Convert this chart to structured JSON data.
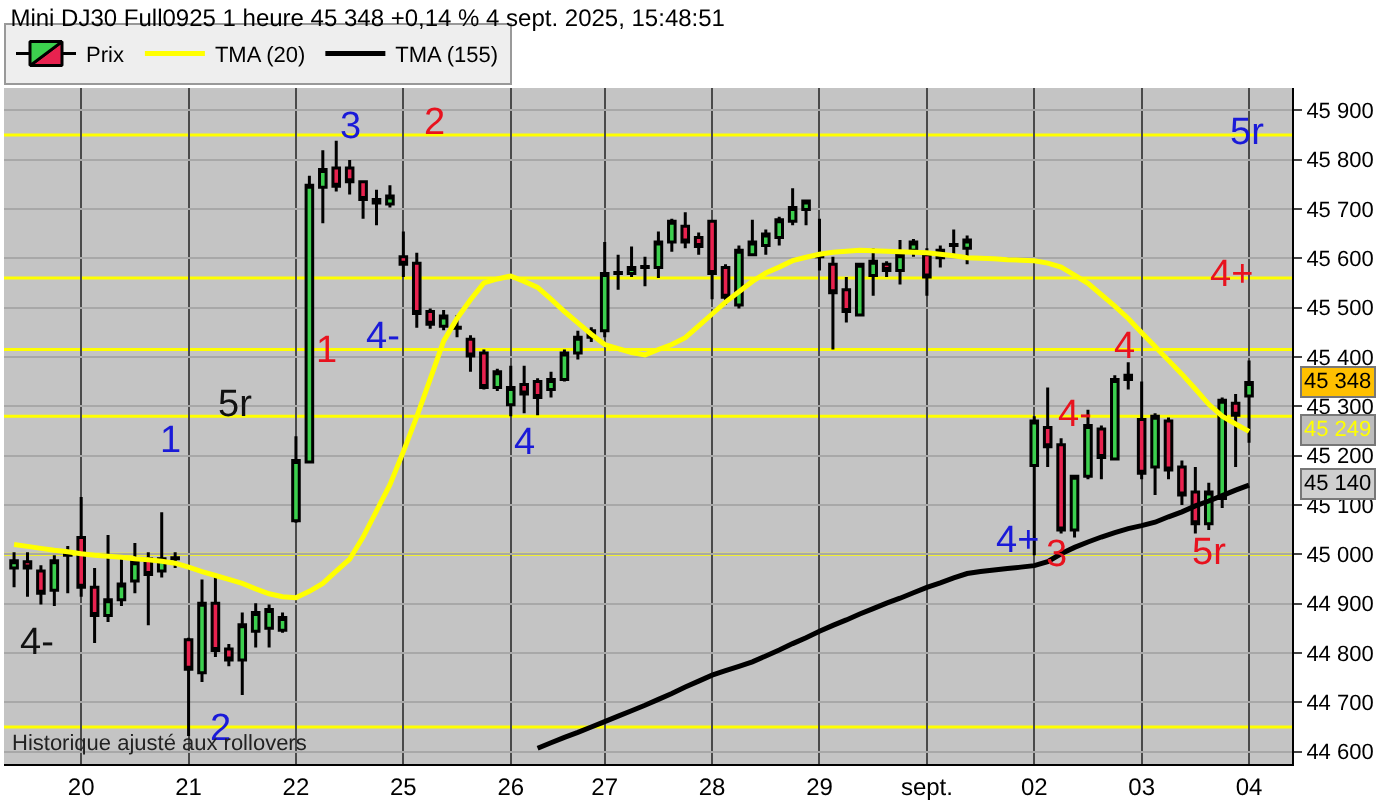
{
  "chart_data": {
    "type": "candlestick",
    "title": "Mini DJ30 Full0925 1 heure 45 348 +0,14 % 4 sept. 2025, 15:48:51",
    "annotations": [
      "4-",
      "1",
      "2",
      "5r",
      "3",
      "2",
      "1",
      "4-",
      "4",
      "4+",
      "3",
      "4-",
      "4",
      "5r",
      "4+",
      "5r",
      "45 348",
      "45 249",
      "45 140",
      "Historique ajusté aux rollovers"
    ],
    "categories": [
      null,
      null,
      null,
      null,
      null,
      "20",
      null,
      null,
      null,
      null,
      null,
      null,
      null,
      "21",
      null,
      null,
      null,
      null,
      null,
      null,
      null,
      "22",
      null,
      null,
      null,
      null,
      null,
      null,
      null,
      "25",
      null,
      null,
      null,
      null,
      null,
      null,
      null,
      "26",
      null,
      null,
      null,
      null,
      null,
      null,
      "27",
      null,
      null,
      null,
      null,
      null,
      null,
      null,
      "28",
      null,
      null,
      null,
      null,
      null,
      null,
      null,
      "29",
      null,
      null,
      null,
      null,
      null,
      null,
      null,
      "sept.",
      null,
      null,
      null,
      null,
      null,
      null,
      null,
      "02",
      null,
      null,
      null,
      null,
      null,
      null,
      null,
      "03",
      null,
      null,
      null,
      null,
      null,
      null,
      null,
      "04"
    ],
    "series": [
      {
        "name": "Prix",
        "ohlc": [
          [
            44972,
            45004,
            44933,
            44987
          ],
          [
            44985,
            45004,
            44914,
            44972
          ],
          [
            44966,
            44978,
            44898,
            44921
          ],
          [
            44927,
            44998,
            44895,
            44987
          ],
          [
            44998,
            45017,
            44921,
            45000
          ],
          [
            45034,
            45116,
            44914,
            44933
          ],
          [
            44933,
            44972,
            44820,
            44876
          ],
          [
            44876,
            45039,
            44863,
            44908
          ],
          [
            44908,
            44991,
            44895,
            44940
          ],
          [
            44946,
            45023,
            44921,
            44985
          ],
          [
            44991,
            45004,
            44856,
            44959
          ],
          [
            44966,
            45085,
            44953,
            44991
          ],
          [
            44991,
            45004,
            44972,
            44993
          ],
          [
            44827,
            44831,
            44632,
            44767
          ],
          [
            44760,
            44949,
            44741,
            44901
          ],
          [
            44901,
            44959,
            44792,
            44805
          ],
          [
            44808,
            44818,
            44773,
            44786
          ],
          [
            44786,
            44882,
            44715,
            44857
          ],
          [
            44844,
            44901,
            44811,
            44882
          ],
          [
            44850,
            44898,
            44811,
            44888
          ],
          [
            44846,
            44882,
            44841,
            44872
          ],
          [
            45068,
            45239,
            45064,
            45190
          ],
          [
            45187,
            45767,
            45185,
            45748
          ],
          [
            45744,
            45819,
            45671,
            45780
          ],
          [
            45783,
            45838,
            45735,
            45746
          ],
          [
            45783,
            45799,
            45729,
            45755
          ],
          [
            45755,
            45757,
            45680,
            45719
          ],
          [
            45719,
            45739,
            45667,
            45712
          ],
          [
            45710,
            45748,
            45703,
            45726
          ],
          [
            45603,
            45654,
            45562,
            45588
          ],
          [
            45590,
            45611,
            45459,
            45488
          ],
          [
            45492,
            45498,
            45457,
            45466
          ],
          [
            45462,
            45495,
            45454,
            45483
          ],
          [
            45460,
            45485,
            45440,
            45458
          ],
          [
            45436,
            45444,
            45370,
            45402
          ],
          [
            45408,
            45415,
            45334,
            45338
          ],
          [
            45338,
            45376,
            45331,
            45370
          ],
          [
            45303,
            45382,
            45280,
            45338
          ],
          [
            45344,
            45382,
            45286,
            45325
          ],
          [
            45350,
            45357,
            45282,
            45318
          ],
          [
            45334,
            45370,
            45318,
            45354
          ],
          [
            45354,
            45415,
            45350,
            45408
          ],
          [
            45408,
            45453,
            45395,
            45440
          ],
          [
            45440,
            45460,
            45430,
            45453
          ],
          [
            45453,
            45633,
            45440,
            45569
          ],
          [
            45569,
            45607,
            45536,
            45571
          ],
          [
            45569,
            45624,
            45562,
            45581
          ],
          [
            45581,
            45603,
            45543,
            45583
          ],
          [
            45581,
            45654,
            45560,
            45633
          ],
          [
            45633,
            45680,
            45613,
            45675
          ],
          [
            45665,
            45693,
            45620,
            45633
          ],
          [
            45642,
            45652,
            45607,
            45624
          ],
          [
            45675,
            45678,
            45517,
            45569
          ],
          [
            45581,
            45588,
            45505,
            45521
          ],
          [
            45505,
            45626,
            45498,
            45616
          ],
          [
            45607,
            45678,
            45607,
            45633
          ],
          [
            45626,
            45658,
            45607,
            45649
          ],
          [
            45642,
            45684,
            45626,
            45678
          ],
          [
            45675,
            45742,
            45667,
            45703
          ],
          [
            45699,
            45719,
            45667,
            45716
          ],
          [
            45607,
            45680,
            45575,
            45603
          ],
          [
            45588,
            45603,
            45415,
            45530
          ],
          [
            45536,
            45562,
            45470,
            45492
          ],
          [
            45485,
            45588,
            45482,
            45588
          ],
          [
            45565,
            45620,
            45524,
            45594
          ],
          [
            45588,
            45594,
            45562,
            45575
          ],
          [
            45575,
            45637,
            45547,
            45607
          ],
          [
            45616,
            45639,
            45603,
            45633
          ],
          [
            45607,
            45620,
            45524,
            45562
          ],
          [
            45601,
            45626,
            45581,
            45616
          ],
          [
            45626,
            45658,
            45607,
            45628
          ],
          [
            45620,
            45646,
            45588,
            45637
          ],
          null,
          null,
          null,
          null,
          [
            45180,
            45280,
            44998,
            45270
          ],
          [
            45257,
            45338,
            45177,
            45218
          ],
          [
            45222,
            45235,
            45042,
            45049
          ],
          [
            45049,
            45158,
            45034,
            45158
          ],
          [
            45158,
            45293,
            45152,
            45261
          ],
          [
            45254,
            45261,
            45152,
            45196
          ],
          [
            45193,
            45363,
            45190,
            45354
          ],
          [
            45354,
            45389,
            45334,
            45363
          ],
          [
            45273,
            45350,
            45152,
            45164
          ],
          [
            45177,
            45286,
            45120,
            45280
          ],
          [
            45270,
            45277,
            45152,
            45171
          ],
          [
            45177,
            45190,
            45100,
            45120
          ],
          [
            45126,
            45177,
            45042,
            45062
          ],
          [
            45062,
            45145,
            45049,
            45126
          ],
          [
            45113,
            45318,
            45094,
            45312
          ],
          [
            45306,
            45325,
            45177,
            45282
          ],
          [
            45321,
            45393,
            45226,
            45348
          ]
        ]
      },
      {
        "name": "TMA (20)",
        "type": "line",
        "color": "#ffff00",
        "values": [
          45020,
          45016,
          45012,
          45008,
          45005,
          45001,
          44998,
          44996,
          44994,
          44991,
          44989,
          44986,
          44982,
          44974,
          44965,
          44957,
          44949,
          44941,
          44930,
          44920,
          44914,
          44912,
          44925,
          44941,
          44966,
          44990,
          45035,
          45088,
          45141,
          45208,
          45279,
          45355,
          45432,
          45478,
          45516,
          45550,
          45558,
          45564,
          45553,
          45541,
          45517,
          45492,
          45469,
          45446,
          45425,
          45417,
          45409,
          45404,
          45415,
          45425,
          45439,
          45463,
          45487,
          45511,
          45532,
          45553,
          45570,
          45582,
          45595,
          45602,
          45608,
          45612,
          45614,
          45616,
          45615,
          45614,
          45613,
          45612,
          45611,
          45608,
          45605,
          45601,
          45600,
          45599,
          45597,
          45596,
          45595,
          45590,
          45582,
          45566,
          45549,
          45526,
          45503,
          45478,
          45449,
          45421,
          45393,
          45365,
          45335,
          45304,
          45280,
          45264,
          45249
        ]
      },
      {
        "name": "TMA (155)",
        "type": "line",
        "color": "#000000",
        "values": [
          null,
          null,
          null,
          null,
          null,
          null,
          null,
          null,
          null,
          null,
          null,
          null,
          null,
          null,
          null,
          null,
          null,
          null,
          null,
          null,
          null,
          null,
          null,
          null,
          null,
          null,
          null,
          null,
          null,
          null,
          null,
          null,
          null,
          null,
          null,
          null,
          null,
          null,
          null,
          44607,
          44618,
          44629,
          44639,
          44650,
          44661,
          44672,
          44683,
          44694,
          44706,
          44718,
          44731,
          44743,
          44755,
          44764,
          44773,
          44782,
          44794,
          44806,
          44819,
          44831,
          44844,
          44856,
          44867,
          44879,
          44890,
          44901,
          44911,
          44922,
          44933,
          44942,
          44952,
          44961,
          44965,
          44968,
          44971,
          44974,
          44977,
          44985,
          45001,
          45014,
          45025,
          45035,
          45044,
          45052,
          45058,
          45065,
          45076,
          45086,
          45098,
          45108,
          45119,
          45130,
          45140
        ]
      }
    ],
    "ylim": [
      44575,
      45945
    ],
    "yticks": [
      {
        "value": 44600,
        "label": "44 600"
      },
      {
        "value": 44700,
        "label": "44 700"
      },
      {
        "value": 44800,
        "label": "44 800"
      },
      {
        "value": 44900,
        "label": "44 900"
      },
      {
        "value": 45000,
        "label": "45 000"
      },
      {
        "value": 45100,
        "label": "45 100"
      },
      {
        "value": 45200,
        "label": "45 200"
      },
      {
        "value": 45300,
        "label": "45 300"
      },
      {
        "value": 45400,
        "label": "45 400"
      },
      {
        "value": 45500,
        "label": "45 500"
      },
      {
        "value": 45600,
        "label": "45 600"
      },
      {
        "value": 45700,
        "label": "45 700"
      },
      {
        "value": 45800,
        "label": "45 800"
      },
      {
        "value": 45900,
        "label": "45 900"
      }
    ],
    "ref_lines": [
      {
        "axis": "y",
        "value": 45850,
        "color": "#ffff00"
      },
      {
        "axis": "y",
        "value": 45560,
        "color": "#ffff00"
      },
      {
        "axis": "y",
        "value": 45415,
        "color": "#ffff00"
      },
      {
        "axis": "y",
        "value": 45280,
        "color": "#ffff00"
      },
      {
        "axis": "y",
        "value": 45000,
        "color": "#ffff00"
      },
      {
        "axis": "y",
        "value": 44650,
        "color": "#ffff00"
      }
    ],
    "grid": true,
    "legend": "top left"
  }
}
